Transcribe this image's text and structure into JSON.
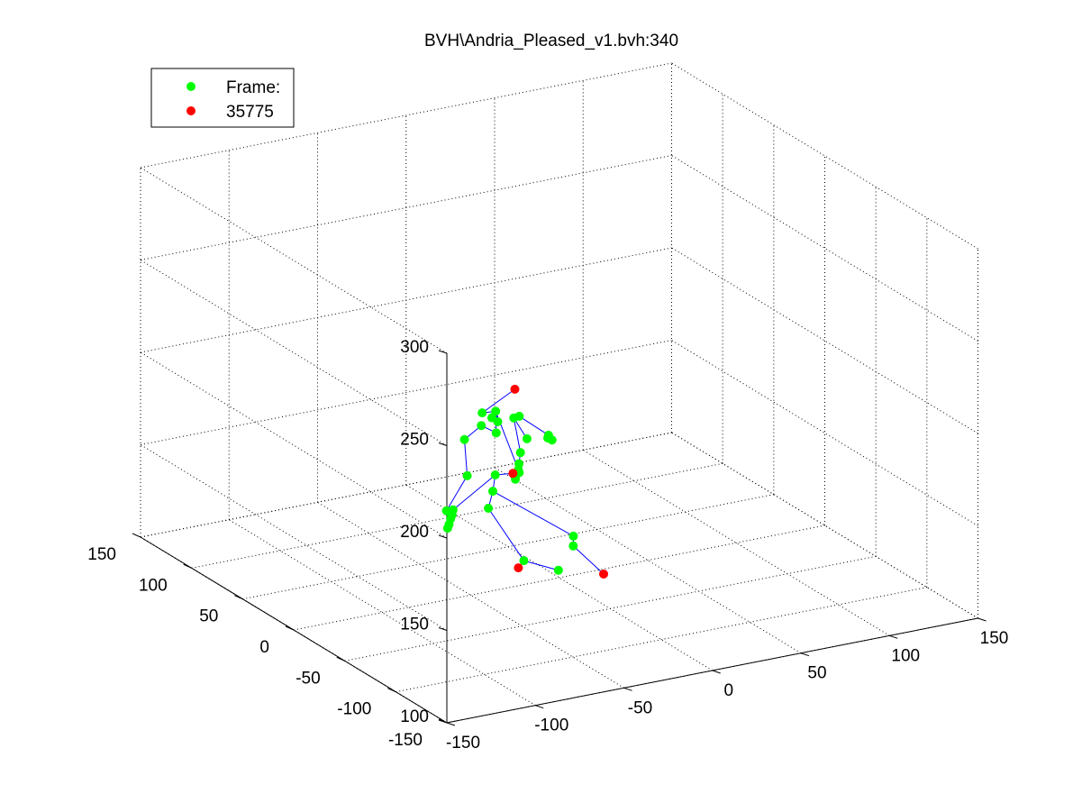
{
  "colors": {
    "background": "#ffffff",
    "bone": "#0000ff",
    "joint": "#00ff00",
    "end_site": "#ff0000"
  },
  "chart_data": {
    "type": "scatter",
    "title": "BVH\\Andria_Pleased_v1.bvh:340",
    "legend": {
      "placement": "top-left",
      "entries": [
        {
          "label": "Frame:",
          "color": "#00ff00"
        },
        {
          "label": "35775",
          "color": "#ff0000"
        }
      ]
    },
    "grid": true,
    "projection": "3d",
    "axes": {
      "x": {
        "lim": [
          -150,
          150
        ],
        "ticks": [
          "-150",
          "-100",
          "-50",
          "0",
          "50",
          "100",
          "150"
        ]
      },
      "y": {
        "lim": [
          -150,
          150
        ],
        "ticks": [
          "-150",
          "-100",
          "-50",
          "0",
          "50",
          "100",
          "150"
        ]
      },
      "z": {
        "lim": [
          100,
          300
        ],
        "ticks": [
          "100",
          "150",
          "200",
          "250",
          "300"
        ]
      }
    },
    "joints": [
      {
        "x": 32,
        "y": 66,
        "z": 149
      },
      {
        "x": 31,
        "y": 65,
        "z": 148
      },
      {
        "x": 34,
        "y": 66,
        "z": 146
      },
      {
        "x": 12,
        "y": 60,
        "z": 165
      },
      {
        "x": 2,
        "y": 48,
        "z": 170
      },
      {
        "x": 6,
        "y": 42,
        "z": 160
      },
      {
        "x": 0,
        "y": 38,
        "z": 155
      },
      {
        "x": -2,
        "y": 36,
        "z": 150
      },
      {
        "x": -3,
        "y": 34,
        "z": 146
      },
      {
        "x": -4,
        "y": 36,
        "z": 142
      },
      {
        "x": 0,
        "y": 40,
        "z": 145
      },
      {
        "x": -14,
        "y": 38,
        "z": 180
      },
      {
        "x": -17,
        "y": 46,
        "z": 177
      },
      {
        "x": -15,
        "y": 40,
        "z": 176
      },
      {
        "x": -14,
        "y": 36,
        "z": 175
      },
      {
        "x": -16,
        "y": 34,
        "z": 170
      },
      {
        "x": -25,
        "y": 33,
        "z": 176
      },
      {
        "x": -42,
        "y": 20,
        "z": 176
      },
      {
        "x": -52,
        "y": 0,
        "z": 165
      },
      {
        "x": -66,
        "y": -4,
        "z": 150
      },
      {
        "x": -64,
        "y": -6,
        "z": 148
      },
      {
        "x": -66,
        "y": -8,
        "z": 147
      },
      {
        "x": -68,
        "y": -10,
        "z": 145
      },
      {
        "x": -70,
        "y": -12,
        "z": 144
      },
      {
        "x": -60,
        "y": 0,
        "z": 148
      },
      {
        "x": -20,
        "y": 28,
        "z": 150
      },
      {
        "x": -26,
        "y": 20,
        "z": 145
      },
      {
        "x": -36,
        "y": 7,
        "z": 142
      },
      {
        "x": -20,
        "y": 0,
        "z": 113
      },
      {
        "x": -12,
        "y": -20,
        "z": 113
      },
      {
        "x": 8,
        "y": 0,
        "z": 121
      },
      {
        "x": 1,
        "y": -12,
        "z": 121
      }
    ],
    "end_sites": [
      {
        "x": -2,
        "y": 40,
        "z": 189
      },
      {
        "x": -10,
        "y": 28,
        "z": 149
      },
      {
        "x": -30,
        "y": -12,
        "z": 115
      },
      {
        "x": 2,
        "y": -40,
        "z": 115
      }
    ],
    "bones": [
      [
        0,
        3
      ],
      [
        3,
        4
      ],
      [
        4,
        5
      ],
      [
        4,
        6
      ],
      [
        6,
        7
      ],
      [
        7,
        8
      ],
      [
        8,
        9
      ],
      [
        9,
        10
      ],
      [
        10,
        11
      ],
      [
        11,
        12
      ],
      [
        11,
        13
      ],
      [
        11,
        14
      ],
      [
        11,
        15
      ],
      [
        15,
        16
      ],
      [
        16,
        17
      ],
      [
        17,
        18
      ],
      [
        18,
        19
      ],
      [
        19,
        20
      ],
      [
        20,
        21
      ],
      [
        21,
        22
      ],
      [
        22,
        23
      ],
      [
        23,
        24
      ],
      [
        24,
        25
      ],
      [
        25,
        26
      ],
      [
        26,
        27
      ],
      [
        27,
        28
      ],
      [
        28,
        29
      ],
      [
        26,
        30
      ],
      [
        30,
        31
      ],
      [
        12,
        32
      ],
      [
        25,
        33
      ],
      [
        28,
        34
      ],
      [
        31,
        35
      ]
    ]
  }
}
